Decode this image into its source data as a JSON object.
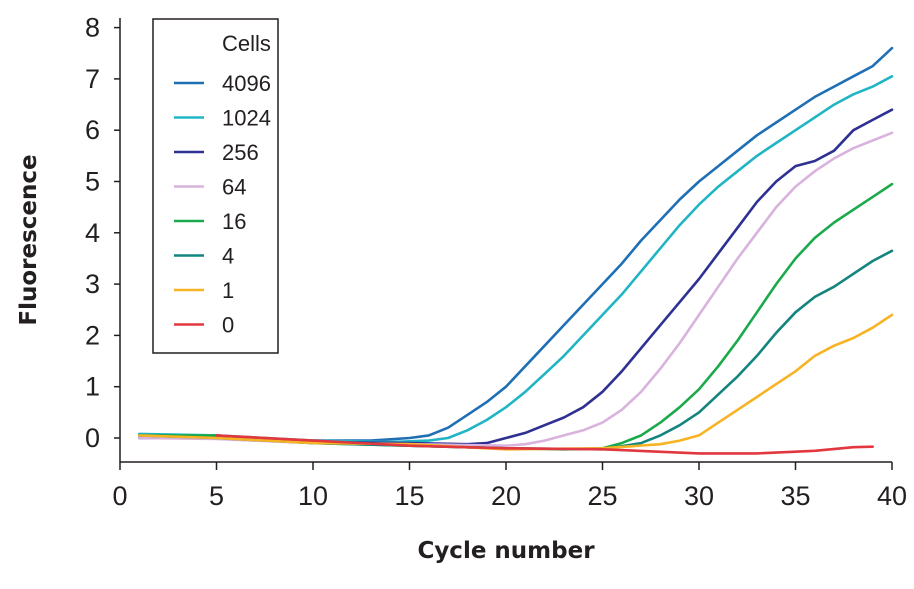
{
  "chart_data": {
    "type": "line",
    "xlabel": "Cycle number",
    "ylabel": "Fluorescence",
    "xlim": [
      0,
      40
    ],
    "ylim": [
      -0.5,
      8
    ],
    "x_ticks": [
      0,
      5,
      10,
      15,
      20,
      25,
      30,
      35,
      40
    ],
    "y_ticks": [
      0,
      1,
      2,
      3,
      4,
      5,
      6,
      7,
      8
    ],
    "grid": false,
    "legend": {
      "title": "Cells",
      "placement": "top-left"
    },
    "series": [
      {
        "name": "4096",
        "color": "#1f6fb5",
        "x": [
          1,
          5,
          10,
          13,
          15,
          16,
          17,
          18,
          19,
          20,
          21,
          22,
          23,
          24,
          25,
          26,
          27,
          28,
          29,
          30,
          31,
          32,
          33,
          34,
          35,
          36,
          37,
          38,
          39,
          40
        ],
        "y": [
          0.05,
          0.02,
          -0.05,
          -0.05,
          0.0,
          0.05,
          0.2,
          0.45,
          0.7,
          1.0,
          1.4,
          1.8,
          2.2,
          2.6,
          3.0,
          3.4,
          3.85,
          4.25,
          4.65,
          5.0,
          5.3,
          5.6,
          5.9,
          6.15,
          6.4,
          6.65,
          6.85,
          7.05,
          7.25,
          7.6
        ]
      },
      {
        "name": "1024",
        "color": "#20b5c4",
        "x": [
          1,
          5,
          10,
          14,
          16,
          17,
          18,
          19,
          20,
          21,
          22,
          23,
          24,
          25,
          26,
          27,
          28,
          29,
          30,
          31,
          32,
          33,
          34,
          35,
          36,
          37,
          38,
          39,
          40
        ],
        "y": [
          0.08,
          0.05,
          -0.05,
          -0.08,
          -0.05,
          0.0,
          0.15,
          0.35,
          0.6,
          0.9,
          1.25,
          1.6,
          2.0,
          2.4,
          2.8,
          3.25,
          3.7,
          4.15,
          4.55,
          4.9,
          5.2,
          5.5,
          5.75,
          6.0,
          6.25,
          6.5,
          6.7,
          6.85,
          7.05
        ]
      },
      {
        "name": "256",
        "color": "#2e3192",
        "x": [
          1,
          5,
          10,
          15,
          18,
          19,
          20,
          21,
          22,
          23,
          24,
          25,
          26,
          27,
          28,
          29,
          30,
          31,
          32,
          33,
          34,
          35,
          36,
          37,
          38,
          39,
          40
        ],
        "y": [
          0.0,
          0.0,
          -0.08,
          -0.1,
          -0.12,
          -0.1,
          0.0,
          0.1,
          0.25,
          0.4,
          0.6,
          0.9,
          1.3,
          1.75,
          2.2,
          2.65,
          3.1,
          3.6,
          4.1,
          4.6,
          5.0,
          5.3,
          5.4,
          5.6,
          6.0,
          6.2,
          6.4
        ]
      },
      {
        "name": "64",
        "color": "#d9b3dd",
        "x": [
          1,
          5,
          10,
          15,
          20,
          21,
          22,
          23,
          24,
          25,
          26,
          27,
          28,
          29,
          30,
          31,
          32,
          33,
          34,
          35,
          36,
          37,
          38,
          39,
          40
        ],
        "y": [
          0.0,
          -0.02,
          -0.1,
          -0.12,
          -0.15,
          -0.12,
          -0.05,
          0.05,
          0.15,
          0.3,
          0.55,
          0.9,
          1.35,
          1.85,
          2.4,
          2.95,
          3.5,
          4.0,
          4.5,
          4.9,
          5.2,
          5.45,
          5.65,
          5.8,
          5.95
        ]
      },
      {
        "name": "16",
        "color": "#1aaa4b",
        "x": [
          1,
          5,
          10,
          15,
          20,
          23,
          25,
          26,
          27,
          28,
          29,
          30,
          31,
          32,
          33,
          34,
          35,
          36,
          37,
          38,
          39,
          40
        ],
        "y": [
          0.05,
          0.05,
          -0.1,
          -0.15,
          -0.2,
          -0.22,
          -0.2,
          -0.1,
          0.05,
          0.3,
          0.6,
          0.95,
          1.4,
          1.9,
          2.45,
          3.0,
          3.5,
          3.9,
          4.2,
          4.45,
          4.7,
          4.95
        ]
      },
      {
        "name": "4",
        "color": "#13857e",
        "x": [
          1,
          5,
          10,
          15,
          20,
          25,
          27,
          28,
          29,
          30,
          31,
          32,
          33,
          34,
          35,
          36,
          37,
          38,
          39,
          40
        ],
        "y": [
          0.05,
          0.0,
          -0.1,
          -0.15,
          -0.2,
          -0.22,
          -0.1,
          0.05,
          0.25,
          0.5,
          0.85,
          1.2,
          1.6,
          2.05,
          2.45,
          2.75,
          2.95,
          3.2,
          3.45,
          3.65
        ]
      },
      {
        "name": "1",
        "color": "#f7b324",
        "x": [
          1,
          5,
          10,
          15,
          20,
          25,
          28,
          29,
          30,
          31,
          32,
          33,
          34,
          35,
          36,
          37,
          38,
          39,
          40
        ],
        "y": [
          0.05,
          0.0,
          -0.1,
          -0.12,
          -0.22,
          -0.2,
          -0.12,
          -0.05,
          0.05,
          0.3,
          0.55,
          0.8,
          1.05,
          1.3,
          1.6,
          1.8,
          1.95,
          2.15,
          2.4
        ]
      },
      {
        "name": "0",
        "color": "#e2373f",
        "x": [
          5,
          10,
          15,
          20,
          25,
          30,
          33,
          36,
          38,
          39
        ],
        "y": [
          0.05,
          -0.05,
          -0.15,
          -0.2,
          -0.22,
          -0.3,
          -0.3,
          -0.25,
          -0.18,
          -0.17
        ]
      }
    ]
  }
}
